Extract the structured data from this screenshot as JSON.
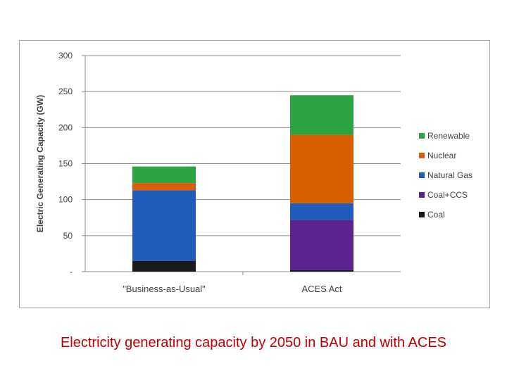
{
  "caption": "Electricity generating capacity by 2050 in BAU and with ACES",
  "chart_data": {
    "type": "bar",
    "stacked": true,
    "title": "",
    "xlabel": "",
    "ylabel": "Electric Generating Capacity (GW)",
    "ylim": [
      0,
      300
    ],
    "yticks": [
      0,
      50,
      100,
      150,
      200,
      250,
      300
    ],
    "ytick_labels": [
      "-",
      "50",
      "100",
      "150",
      "200",
      "250",
      "300"
    ],
    "categories": [
      "\"Business-as-Usual\"",
      "ACES Act"
    ],
    "grid": true,
    "legend_position": "right",
    "series": [
      {
        "name": "Coal",
        "color": "#1a1a1a",
        "values": [
          15,
          2
        ]
      },
      {
        "name": "Coal+CCS",
        "color": "#5b2390",
        "values": [
          0,
          70
        ]
      },
      {
        "name": "Natural Gas",
        "color": "#1f5cbc",
        "values": [
          98,
          23
        ]
      },
      {
        "name": "Nuclear",
        "color": "#d95f02",
        "values": [
          10,
          95
        ]
      },
      {
        "name": "Renewable",
        "color": "#2da443",
        "values": [
          23,
          55
        ]
      }
    ]
  }
}
